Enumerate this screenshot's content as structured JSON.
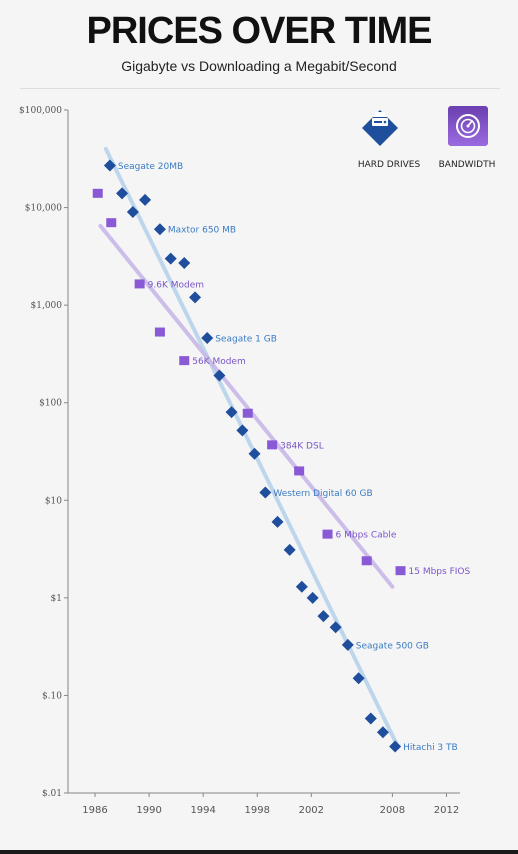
{
  "header": {
    "title": "PRICES OVER TIME",
    "subtitle": "Gigabyte vs Downloading a Megabit/Second"
  },
  "legend": {
    "hard_drives": {
      "label": "HARD DRIVES",
      "icon": "hard-drive-icon",
      "color": "#1f4e9c"
    },
    "bandwidth": {
      "label": "BANDWIDTH",
      "icon": "bandwidth-icon",
      "color": "#8a5ad6"
    }
  },
  "colors": {
    "hd_marker": "#1f4e9c",
    "bw_marker": "#8a5ad6",
    "hd_trend": "#b7d3ea",
    "bw_trend": "#c8b8e8",
    "axis": "#888888"
  },
  "chart_data": {
    "type": "scatter",
    "title": "PRICES OVER TIME",
    "subtitle": "Gigabyte vs Downloading a Megabit/Second",
    "y_scale": "log",
    "ylim": [
      0.01,
      100000
    ],
    "xlim": [
      1984,
      2013
    ],
    "y_ticks": [
      {
        "value": 100000,
        "label": "$100,000"
      },
      {
        "value": 10000,
        "label": "$10,000"
      },
      {
        "value": 1000,
        "label": "$1,000"
      },
      {
        "value": 100,
        "label": "$100"
      },
      {
        "value": 10,
        "label": "$10"
      },
      {
        "value": 1,
        "label": "$1"
      },
      {
        "value": 0.1,
        "label": "$.10"
      },
      {
        "value": 0.01,
        "label": "$.01"
      }
    ],
    "x_ticks": [
      {
        "value": 1986,
        "label": "1986"
      },
      {
        "value": 1990,
        "label": "1990"
      },
      {
        "value": 1994,
        "label": "1994"
      },
      {
        "value": 1998,
        "label": "1998"
      },
      {
        "value": 2002,
        "label": "2002"
      },
      {
        "value": 2008,
        "label": "2008"
      },
      {
        "value": 2012,
        "label": "2012"
      }
    ],
    "series": [
      {
        "name": "HARD DRIVES",
        "marker": "diamond",
        "points": [
          {
            "x": 1987.1,
            "y": 27000,
            "label": "Seagate 20MB"
          },
          {
            "x": 1988.0,
            "y": 14000
          },
          {
            "x": 1988.8,
            "y": 9000
          },
          {
            "x": 1989.7,
            "y": 12000
          },
          {
            "x": 1990.8,
            "y": 6000,
            "label": "Maxtor 650 MB"
          },
          {
            "x": 1991.6,
            "y": 3000
          },
          {
            "x": 1992.6,
            "y": 2700
          },
          {
            "x": 1993.4,
            "y": 1200
          },
          {
            "x": 1994.3,
            "y": 460,
            "label": "Seagate 1 GB"
          },
          {
            "x": 1995.2,
            "y": 190
          },
          {
            "x": 1996.1,
            "y": 80
          },
          {
            "x": 1996.9,
            "y": 52
          },
          {
            "x": 1997.8,
            "y": 30
          },
          {
            "x": 1998.6,
            "y": 12,
            "label": "Western Digital 60 GB"
          },
          {
            "x": 1999.5,
            "y": 6
          },
          {
            "x": 2000.4,
            "y": 3.1
          },
          {
            "x": 2001.3,
            "y": 1.3
          },
          {
            "x": 2002.1,
            "y": 1.0
          },
          {
            "x": 2002.9,
            "y": 0.65
          },
          {
            "x": 2003.8,
            "y": 0.5
          },
          {
            "x": 2004.7,
            "y": 0.33,
            "label": "Seagate 500 GB"
          },
          {
            "x": 2005.5,
            "y": 0.15
          },
          {
            "x": 2006.4,
            "y": 0.058
          },
          {
            "x": 2007.3,
            "y": 0.042
          },
          {
            "x": 2008.2,
            "y": 0.03,
            "label": "Hitachi 3 TB"
          }
        ],
        "trend": [
          {
            "x": 1986.8,
            "y": 40000
          },
          {
            "x": 2008.4,
            "y": 0.03
          }
        ]
      },
      {
        "name": "BANDWIDTH",
        "marker": "square",
        "points": [
          {
            "x": 1986.2,
            "y": 14000
          },
          {
            "x": 1987.2,
            "y": 7000
          },
          {
            "x": 1989.3,
            "y": 1650,
            "label": "9.6K Modem"
          },
          {
            "x": 1990.8,
            "y": 530
          },
          {
            "x": 1992.6,
            "y": 270,
            "label": "56K Modem"
          },
          {
            "x": 1997.3,
            "y": 78
          },
          {
            "x": 1999.1,
            "y": 37,
            "label": "384K DSL"
          },
          {
            "x": 2001.1,
            "y": 20
          },
          {
            "x": 2003.2,
            "y": 4.5,
            "label": "6 Mbps Cable"
          },
          {
            "x": 2006.1,
            "y": 2.4
          },
          {
            "x": 2008.6,
            "y": 1.9,
            "label": "15 Mbps FIOS"
          }
        ],
        "trend": [
          {
            "x": 1986.4,
            "y": 6500
          },
          {
            "x": 2008.0,
            "y": 1.3
          }
        ]
      }
    ]
  }
}
